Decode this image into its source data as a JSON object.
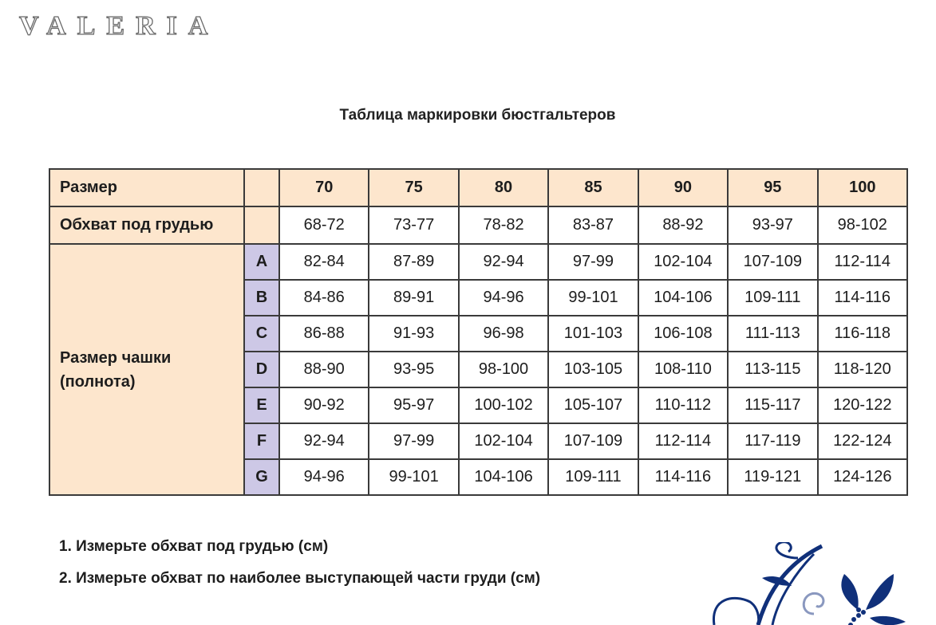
{
  "brand": "VALERIA",
  "title": "Таблица маркировки бюстгальтеров",
  "colors": {
    "header_bg": "#fde6cd",
    "cup_letter_bg": "#cdc8e6",
    "ornament": "#10307a"
  },
  "table": {
    "size_label": "Размер",
    "sizes": [
      "70",
      "75",
      "80",
      "85",
      "90",
      "95",
      "100"
    ],
    "underbust_label": "Обхват под грудью",
    "underbust": [
      "68-72",
      "73-77",
      "78-82",
      "83-87",
      "88-92",
      "93-97",
      "98-102"
    ],
    "cup_label": "Размер чашки (полнота)",
    "cups": [
      {
        "letter": "A",
        "values": [
          "82-84",
          "87-89",
          "92-94",
          "97-99",
          "102-104",
          "107-109",
          "112-114"
        ]
      },
      {
        "letter": "B",
        "values": [
          "84-86",
          "89-91",
          "94-96",
          "99-101",
          "104-106",
          "109-111",
          "114-116"
        ]
      },
      {
        "letter": "C",
        "values": [
          "86-88",
          "91-93",
          "96-98",
          "101-103",
          "106-108",
          "111-113",
          "116-118"
        ]
      },
      {
        "letter": "D",
        "values": [
          "88-90",
          "93-95",
          "98-100",
          "103-105",
          "108-110",
          "113-115",
          "118-120"
        ]
      },
      {
        "letter": "E",
        "values": [
          "90-92",
          "95-97",
          "100-102",
          "105-107",
          "110-112",
          "115-117",
          "120-122"
        ]
      },
      {
        "letter": "F",
        "values": [
          "92-94",
          "97-99",
          "102-104",
          "107-109",
          "112-114",
          "117-119",
          "122-124"
        ]
      },
      {
        "letter": "G",
        "values": [
          "94-96",
          "99-101",
          "104-106",
          "109-111",
          "114-116",
          "119-121",
          "124-126"
        ]
      }
    ]
  },
  "steps": [
    "1. Измерьте обхват под грудью (см)",
    "2. Измерьте обхват по наиболее выступающей части груди (см)"
  ]
}
